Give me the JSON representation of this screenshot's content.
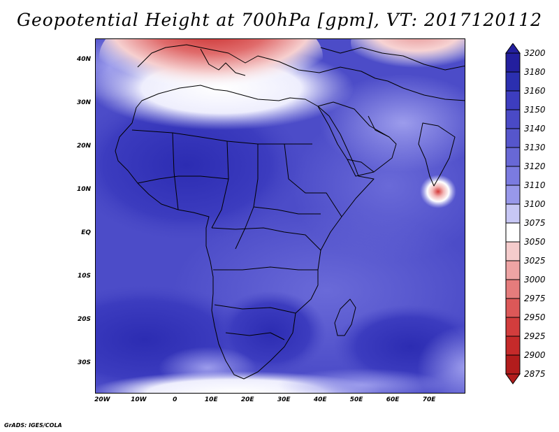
{
  "title": "Geopotential Height at 700hPa [gpm], VT: 2017120112",
  "credit": "GrADS: IGES/COLA",
  "map": {
    "lon_range": [
      -22,
      80
    ],
    "lat_range": [
      -37,
      45
    ],
    "lat_ticks": [
      {
        "lat": 40,
        "label": "40N"
      },
      {
        "lat": 30,
        "label": "30N"
      },
      {
        "lat": 20,
        "label": "20N"
      },
      {
        "lat": 10,
        "label": "10N"
      },
      {
        "lat": 0,
        "label": "EQ"
      },
      {
        "lat": -10,
        "label": "10S"
      },
      {
        "lat": -20,
        "label": "20S"
      },
      {
        "lat": -30,
        "label": "30S"
      }
    ],
    "lon_ticks": [
      {
        "lon": -20,
        "label": "20W"
      },
      {
        "lon": -10,
        "label": "10W"
      },
      {
        "lon": 0,
        "label": "0"
      },
      {
        "lon": 10,
        "label": "10E"
      },
      {
        "lon": 20,
        "label": "20E"
      },
      {
        "lon": 30,
        "label": "30E"
      },
      {
        "lon": 40,
        "label": "40E"
      },
      {
        "lon": 50,
        "label": "50E"
      },
      {
        "lon": 60,
        "label": "60E"
      },
      {
        "lon": 70,
        "label": "70E"
      }
    ]
  },
  "colorbar": {
    "levels": [
      "3200",
      "3180",
      "3160",
      "3150",
      "3140",
      "3130",
      "3120",
      "3110",
      "3100",
      "3075",
      "3050",
      "3025",
      "3000",
      "2975",
      "2950",
      "2925",
      "2900",
      "2875"
    ],
    "colors": [
      "#231f9e",
      "#2b2fb0",
      "#3d3dbf",
      "#4a4ac6",
      "#5656cc",
      "#6868d6",
      "#7b7be0",
      "#9898ea",
      "#c7c7f5",
      "#ffffff",
      "#f5cccc",
      "#eea4a4",
      "#e57c7c",
      "#dc5858",
      "#d23d3d",
      "#c52a2a",
      "#b21c1c"
    ]
  }
}
